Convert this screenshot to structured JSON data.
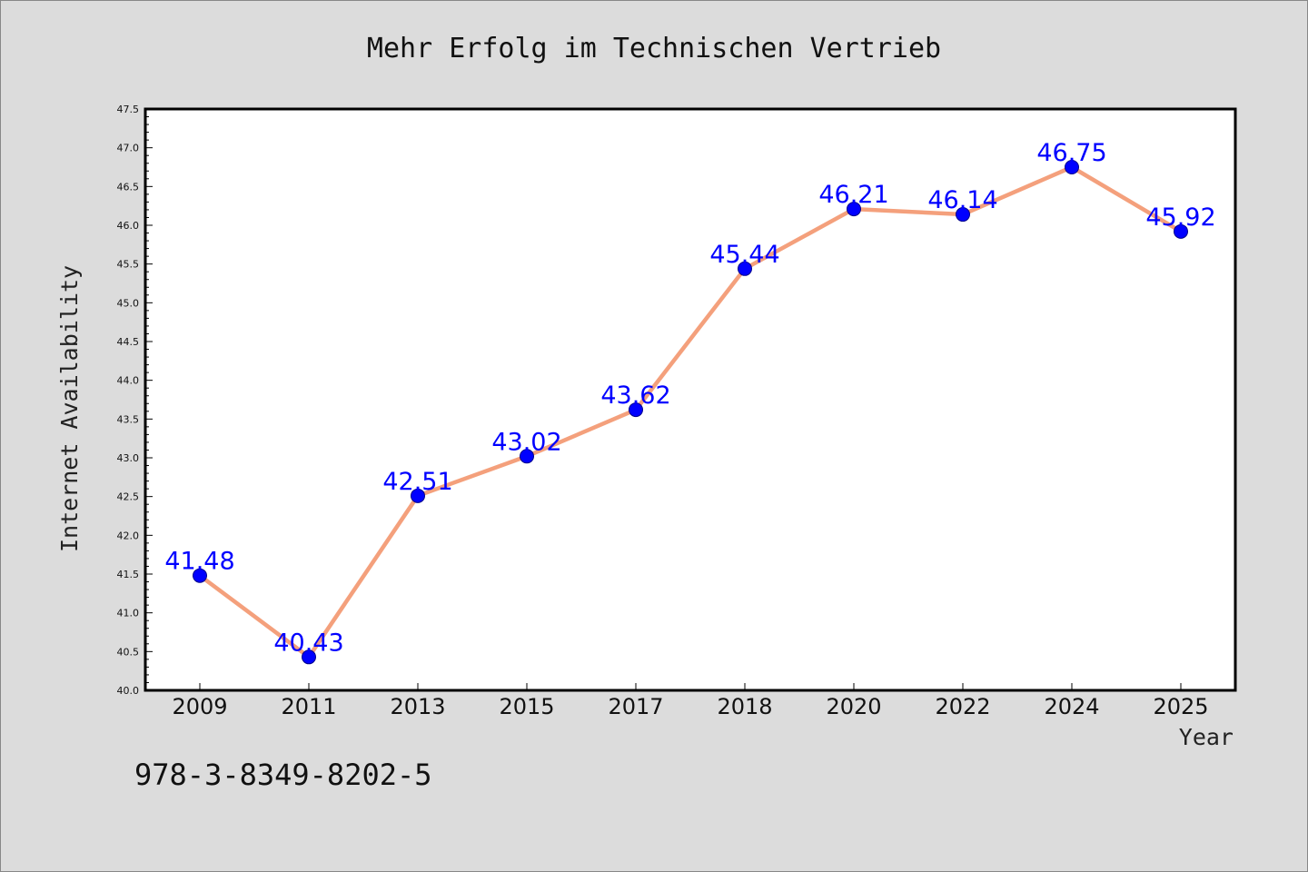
{
  "chart_data": {
    "type": "line",
    "title": "Mehr Erfolg im Technischen Vertrieb",
    "xlabel": "Year",
    "ylabel": "Internet Availability",
    "categories": [
      "2009",
      "2011",
      "2013",
      "2015",
      "2017",
      "2018",
      "2020",
      "2022",
      "2024",
      "2025"
    ],
    "values": [
      41.48,
      40.43,
      42.51,
      43.02,
      43.62,
      45.44,
      46.21,
      46.14,
      46.75,
      45.92
    ],
    "data_labels": [
      "41.48",
      "40.43",
      "42.51",
      "43.02",
      "43.62",
      "45.44",
      "46.21",
      "46.14",
      "46.75",
      "45.92"
    ],
    "yticks": [
      "40.0",
      "40.5",
      "41.0",
      "41.5",
      "42.0",
      "42.5",
      "43.0",
      "43.5",
      "44.0",
      "44.5",
      "45.0",
      "45.5",
      "46.0",
      "46.5",
      "47.0",
      "47.5"
    ],
    "ylim": [
      40.0,
      47.5
    ],
    "grid": false,
    "line_color": "#f4a07c",
    "marker_color": "#0000ff",
    "label_color": "#0000ff"
  },
  "footer_text": "978-3-8349-8202-5"
}
